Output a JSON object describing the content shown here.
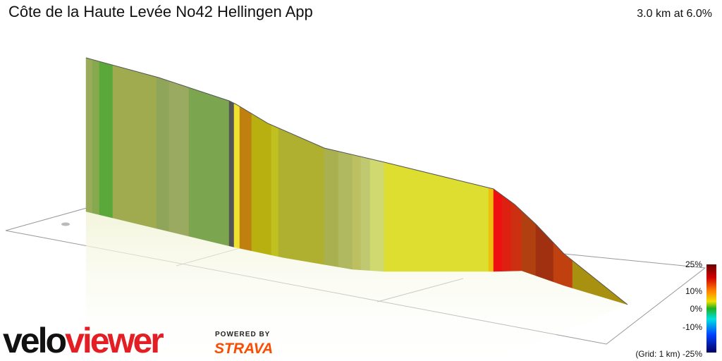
{
  "header": {
    "title": "Côte de la Haute Levée No42 Hellingen App",
    "stats": "3.0 km at 6.0%"
  },
  "legend": {
    "labels": [
      "25%",
      "10%",
      "0%",
      "-10%",
      "(Grid: 1 km) -25%"
    ]
  },
  "branding": {
    "logo_velo": "velo",
    "logo_viewer": "viewer",
    "powered_by": "POWERED BY",
    "strava": "STRAVA"
  }
}
